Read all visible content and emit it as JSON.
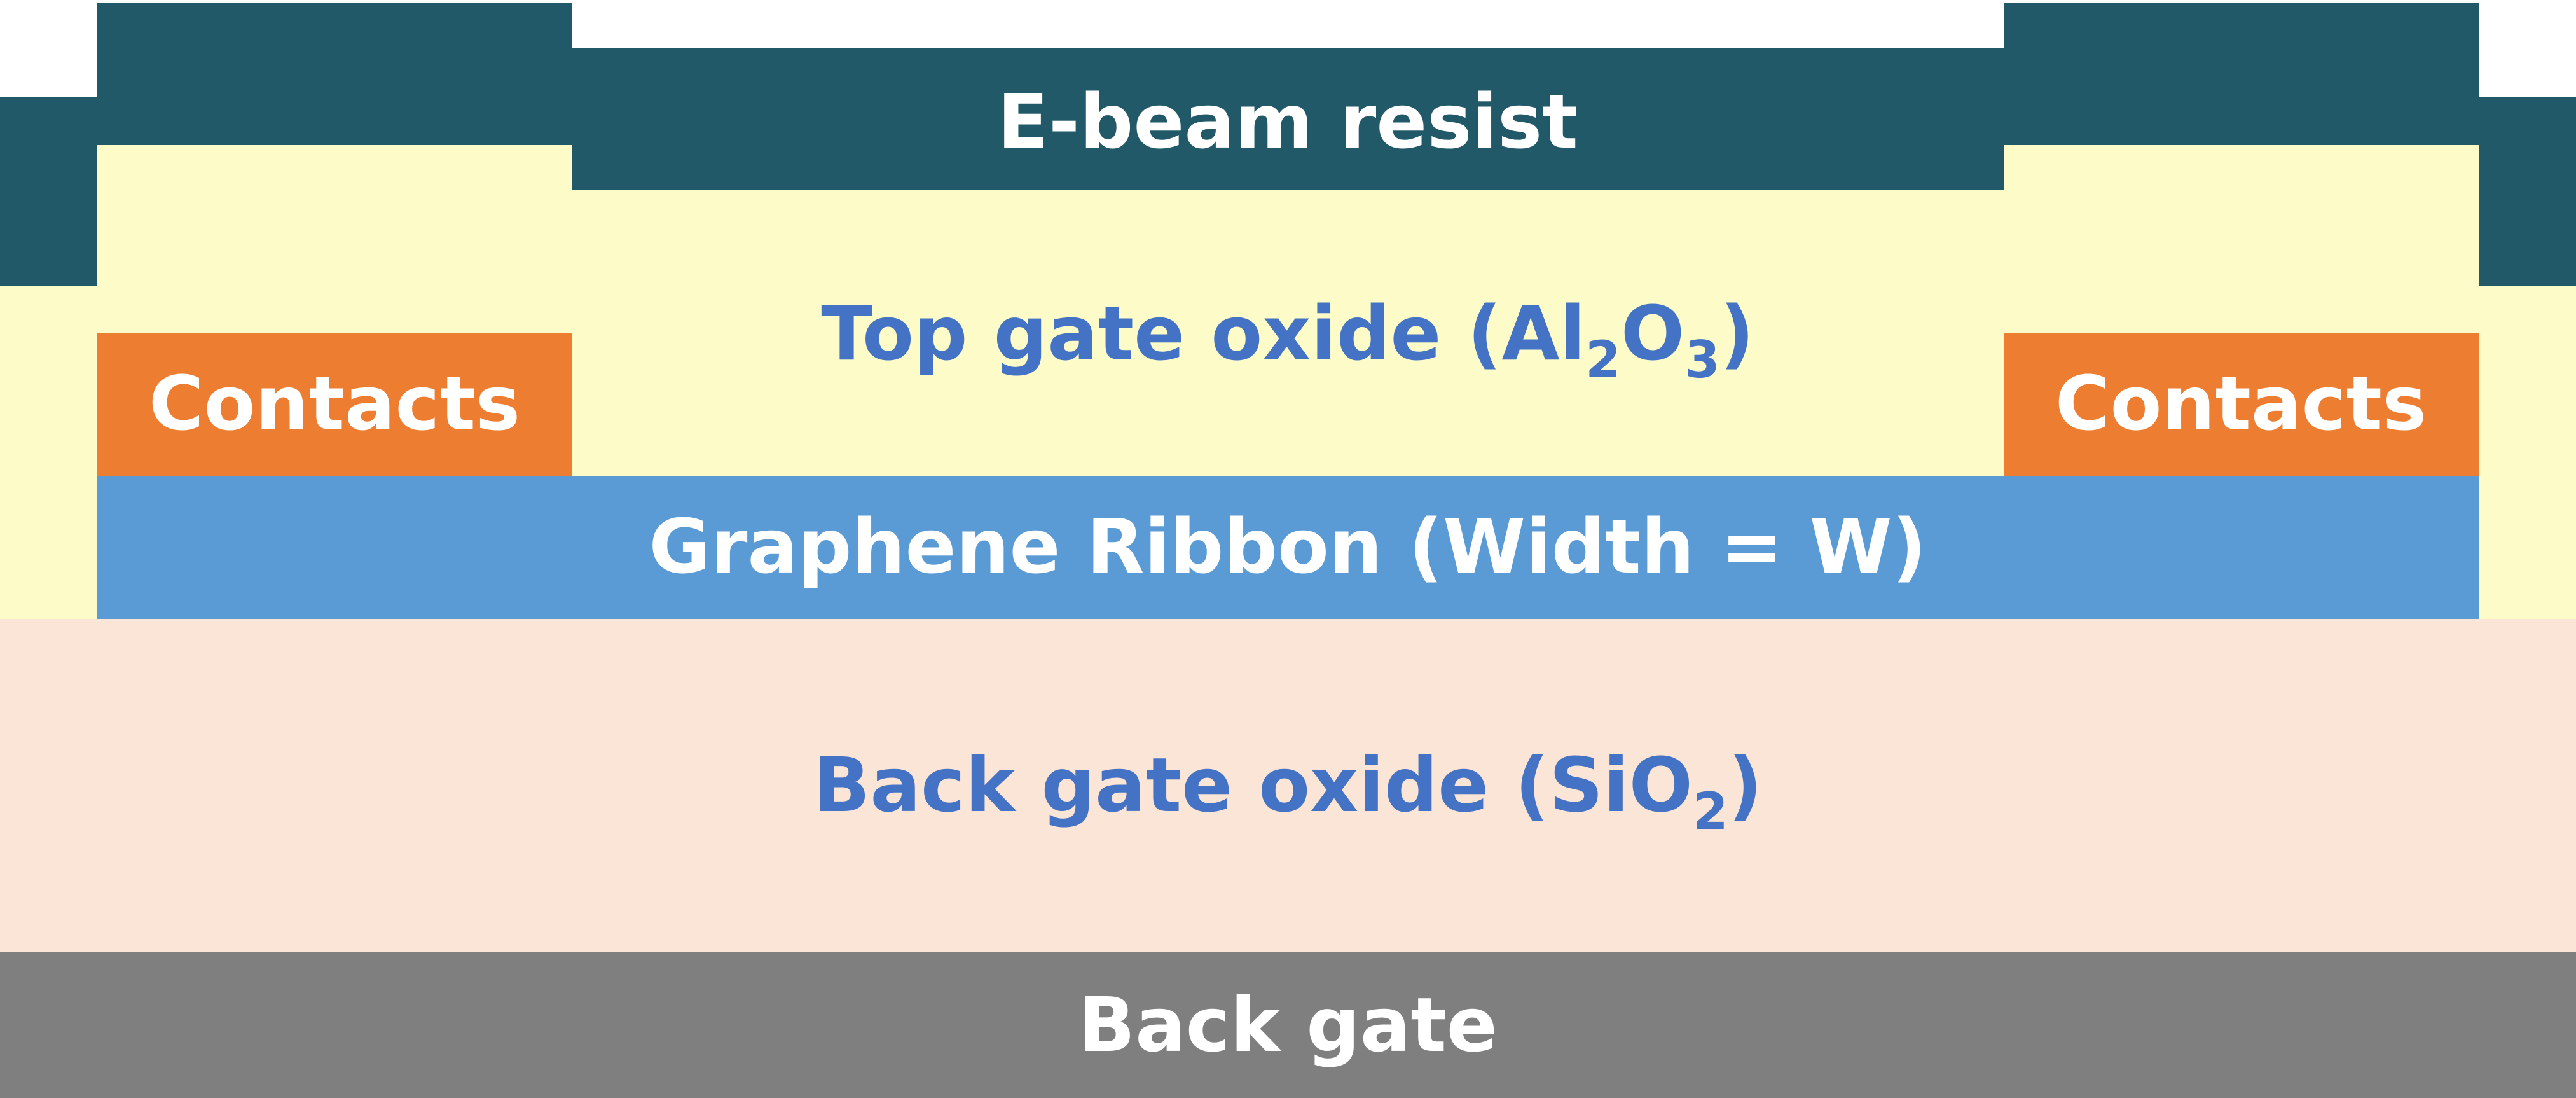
{
  "layers": {
    "resist": {
      "label": "E-beam resist",
      "color": "#215968"
    },
    "top_oxide": {
      "label_main": "Top gate oxide (Al",
      "sub1": "2",
      "mid": "O",
      "sub2": "3",
      "close": ")",
      "color": "#fdfcc8"
    },
    "contacts": {
      "left_label": "Contacts",
      "right_label": "Contacts",
      "color": "#ed7d31"
    },
    "graphene": {
      "label": "Graphene Ribbon (Width = W)",
      "color": "#5b9bd5"
    },
    "back_oxide": {
      "label_main": "Back gate oxide (SiO",
      "sub": "2",
      "close": ")",
      "color": "#fbe5d6"
    },
    "back_gate": {
      "label": "Back gate",
      "color": "#7f7f7f"
    }
  },
  "text_colors": {
    "white": "#ffffff",
    "blue": "#4472c4"
  }
}
